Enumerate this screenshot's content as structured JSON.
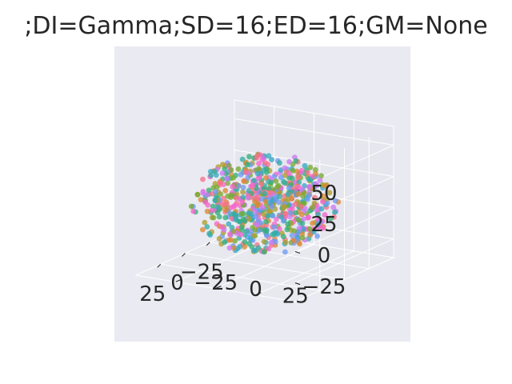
{
  "chart_data": {
    "type": "scatter",
    "title": ";DI=Gamma;SD=16;ED=16;GM=None",
    "xlabel": "",
    "ylabel": "",
    "zlabel": "",
    "projection": "3d",
    "grid": true,
    "legend": "none",
    "xlim": [
      -50,
      50
    ],
    "ylim": [
      -50,
      50
    ],
    "zlim": [
      -40,
      65
    ],
    "x_ticks": [
      "−25",
      "0",
      "25"
    ],
    "y_ticks": [
      "−25",
      "0",
      "25"
    ],
    "z_ticks": [
      "50",
      "25",
      "0",
      "−25"
    ],
    "x_tick_values": [
      -25,
      0,
      25
    ],
    "y_tick_values": [
      -25,
      0,
      25
    ],
    "z_tick_values": [
      50,
      25,
      0,
      -25
    ],
    "point_count": 700,
    "point_cloud": "roughly spherical cluster centered near origin, radius ≈ 40",
    "series_colors": [
      "#f77189",
      "#dc8932",
      "#ae9d31",
      "#77ab31",
      "#33b07a",
      "#36ada4",
      "#38a9c5",
      "#6e9bf4",
      "#cc7af4",
      "#f565cc"
    ],
    "style": {
      "pane_color": "#eaeaf2",
      "figure_background": "#ffffff",
      "text_color": "#262626"
    }
  }
}
